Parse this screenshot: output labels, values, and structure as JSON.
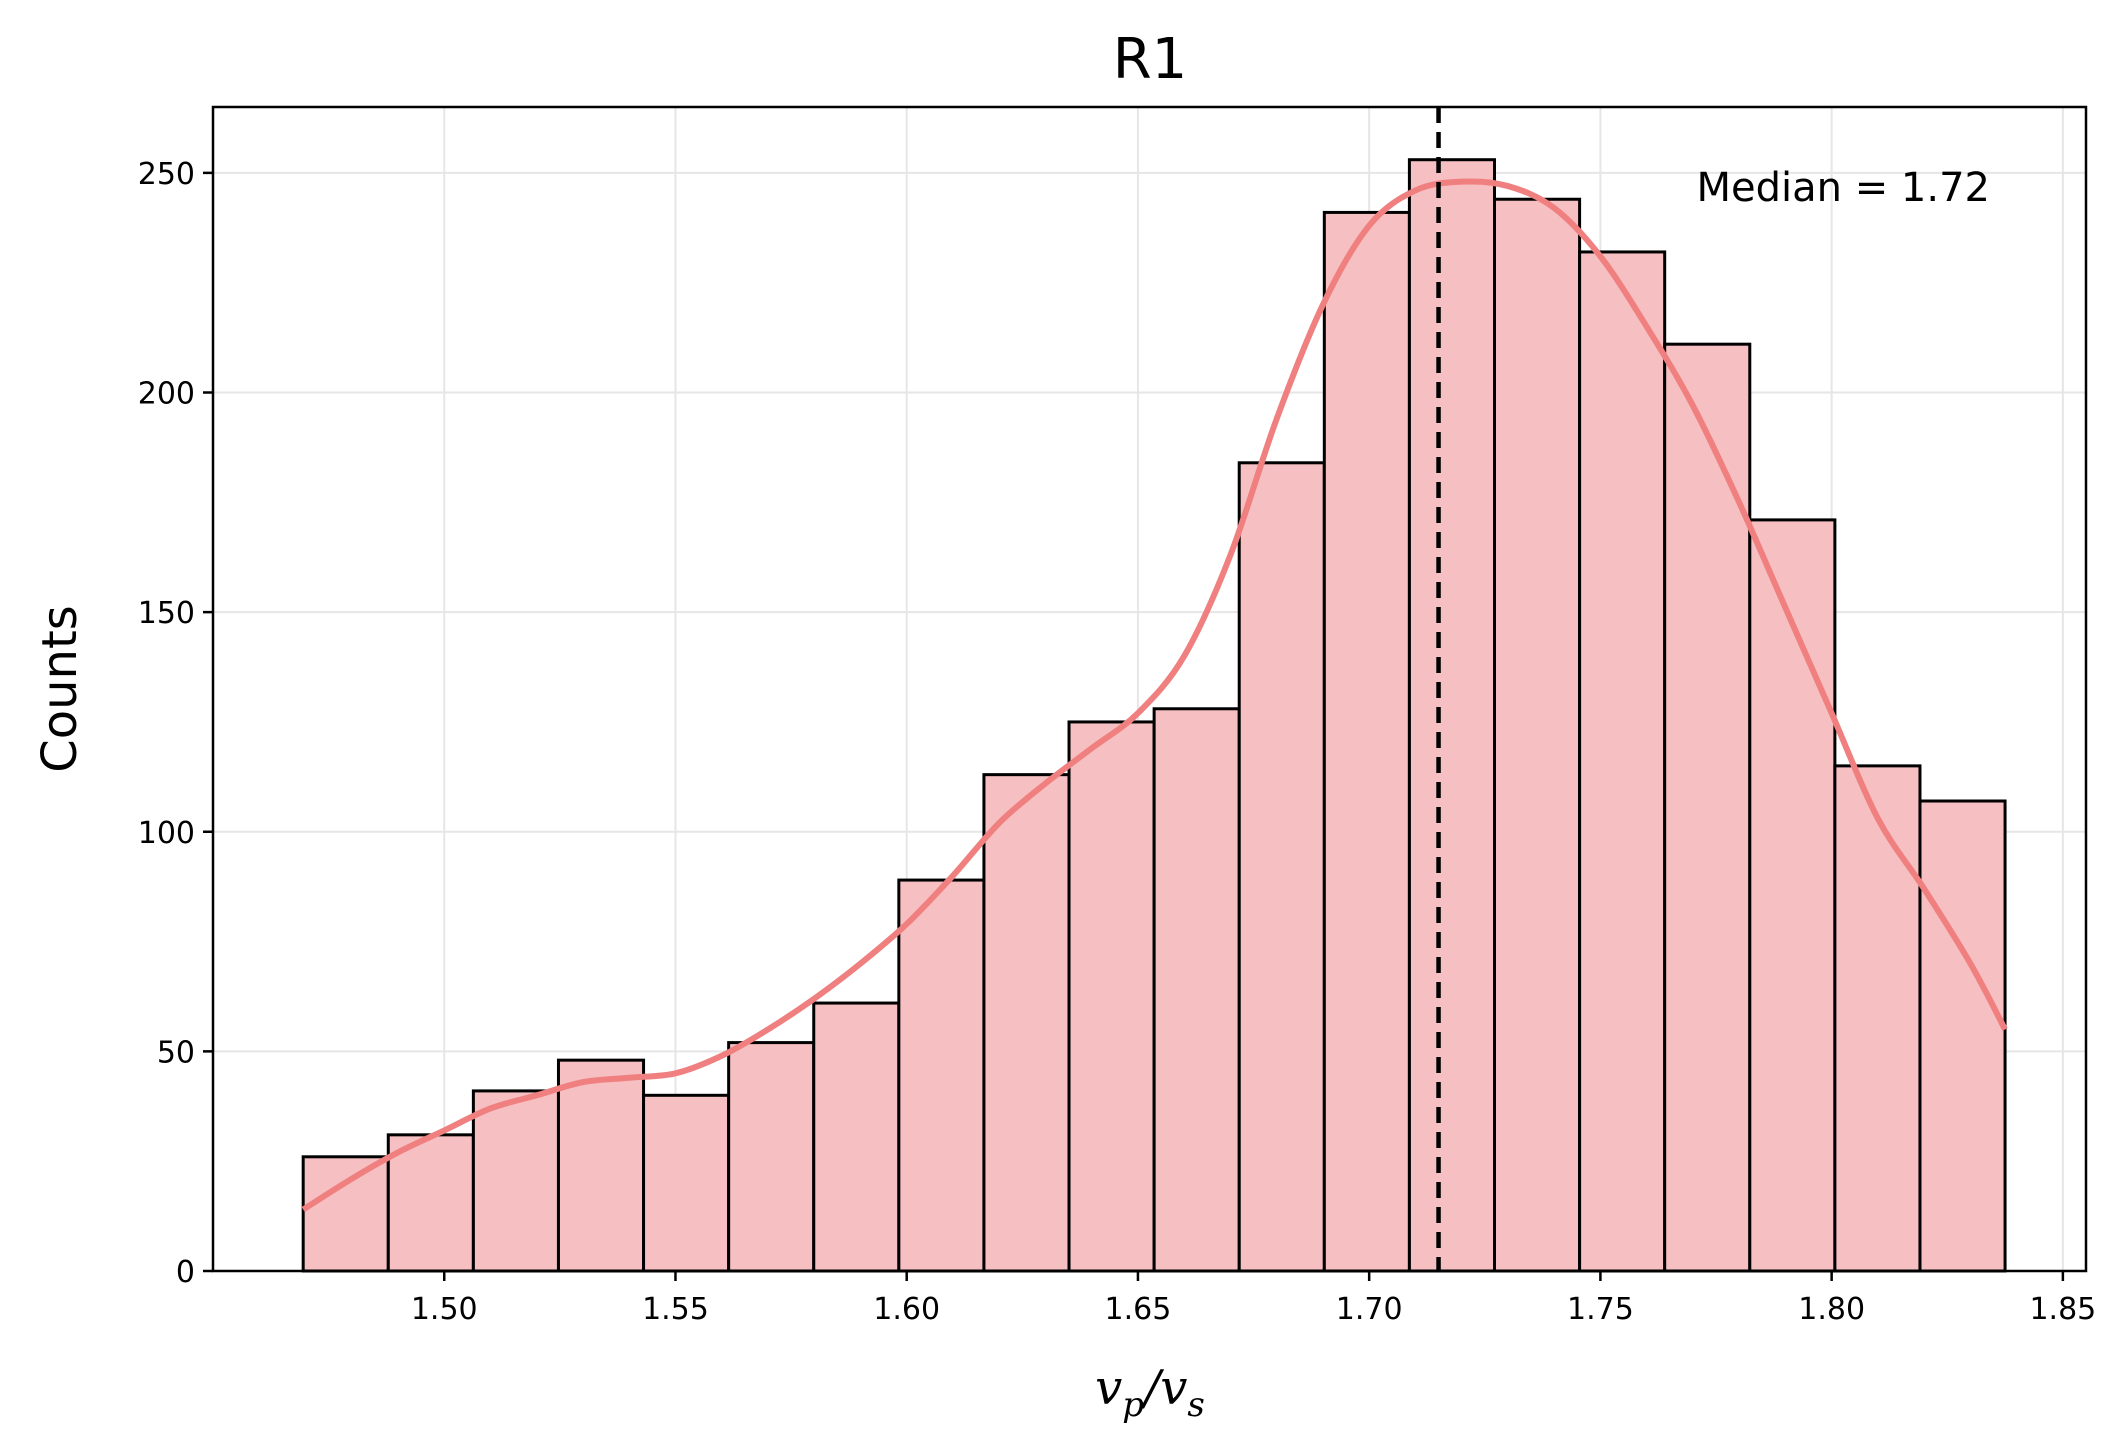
{
  "chart_data": {
    "type": "bar",
    "title": "R1",
    "xlabel": {
      "main1": "v",
      "sub1": "p",
      "slash": "/",
      "main2": "v",
      "sub2": "s"
    },
    "ylabel": "Counts",
    "annotation": "Median = 1.72",
    "median": 1.715,
    "xlim": [
      1.45,
      1.855
    ],
    "ylim": [
      0,
      265
    ],
    "x_ticks": [
      1.5,
      1.55,
      1.6,
      1.65,
      1.7,
      1.75,
      1.8,
      1.85
    ],
    "y_ticks": [
      0,
      50,
      100,
      150,
      200,
      250
    ],
    "grid": true,
    "bins": {
      "edges": [
        1.4695,
        1.4879,
        1.5063,
        1.5247,
        1.5431,
        1.5615,
        1.5799,
        1.5983,
        1.6167,
        1.6351,
        1.6535,
        1.6719,
        1.6903,
        1.7087,
        1.7271,
        1.7455,
        1.7639,
        1.7823,
        1.8007,
        1.8191,
        1.8375
      ],
      "counts": [
        26,
        31,
        41,
        48,
        40,
        52,
        61,
        89,
        113,
        125,
        128,
        184,
        241,
        253,
        244,
        232,
        211,
        171,
        115,
        107
      ]
    },
    "kde": {
      "x": [
        1.4695,
        1.48,
        1.49,
        1.5,
        1.51,
        1.52,
        1.53,
        1.54,
        1.55,
        1.56,
        1.57,
        1.58,
        1.59,
        1.6,
        1.61,
        1.62,
        1.63,
        1.64,
        1.65,
        1.66,
        1.67,
        1.68,
        1.69,
        1.7,
        1.71,
        1.72,
        1.73,
        1.74,
        1.75,
        1.76,
        1.77,
        1.78,
        1.79,
        1.8,
        1.81,
        1.82,
        1.83,
        1.8375
      ],
      "y": [
        14,
        21,
        27,
        32,
        37,
        40,
        43,
        44,
        45,
        49,
        55,
        62,
        70,
        79,
        90,
        102,
        111,
        119,
        127,
        140,
        163,
        194,
        220,
        238,
        246,
        248,
        247,
        242,
        231,
        215,
        197,
        175,
        151,
        127,
        103,
        87,
        70,
        55
      ]
    },
    "colors": {
      "bar_fill": "#f6bfc1",
      "bar_edge": "#000000",
      "kde_line": "#f08080",
      "median_line": "#000000",
      "grid": "#e6e6e6"
    }
  }
}
